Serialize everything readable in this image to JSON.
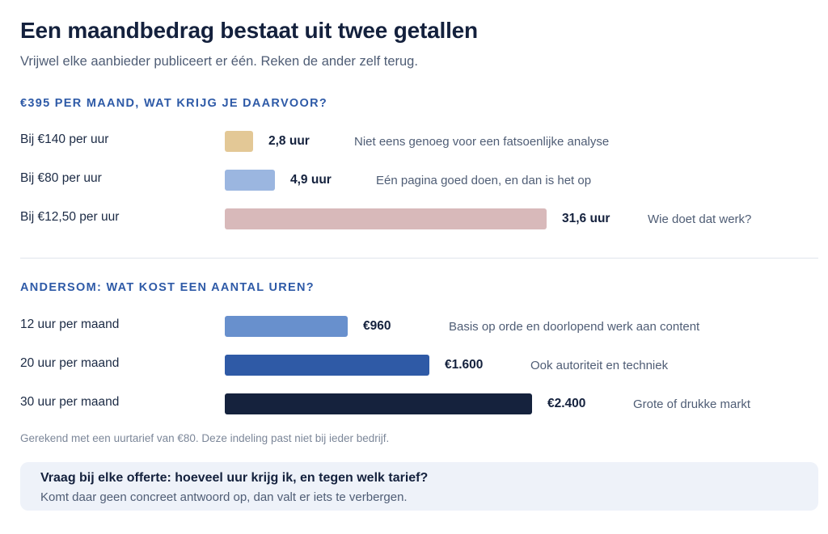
{
  "header": {
    "title": "Een maandbedrag bestaat uit twee getallen",
    "subtitle": "Vrijwel elke aanbieder publiceert er één. Reken de ander zelf terug."
  },
  "chart_data": [
    {
      "type": "bar",
      "orientation": "horizontal",
      "title": "€395 PER MAAND, WAT KRIJG JE DAARVOOR?",
      "unit": "uur",
      "categories": [
        "Bij €140 per uur",
        "Bij €80 per uur",
        "Bij €12,50 per uur"
      ],
      "values": [
        2.8,
        4.9,
        31.6
      ],
      "value_labels": [
        "2,8 uur",
        "4,9 uur",
        "31,6 uur"
      ],
      "notes": [
        "Niet eens genoeg voor een fatsoenlijke analyse",
        "Eén pagina goed doen, en dan is het op",
        "Wie doet dat werk?"
      ],
      "colors": [
        "#e3c896",
        "#9bb6e0",
        "#d8b9ba"
      ]
    },
    {
      "type": "bar",
      "orientation": "horizontal",
      "title": "ANDERSOM: WAT KOST EEN AANTAL UREN?",
      "unit": "€",
      "categories": [
        "12 uur per maand",
        "20 uur per maand",
        "30 uur per maand"
      ],
      "values": [
        960,
        1600,
        2400
      ],
      "value_labels": [
        "€960",
        "€1.600",
        "€2.400"
      ],
      "notes": [
        "Basis op orde en doorlopend werk aan content",
        "Ook autoriteit en techniek",
        "Grote of drukke markt"
      ],
      "colors": [
        "#6890cd",
        "#2f5aa6",
        "#15223d"
      ]
    }
  ],
  "footnote": "Gerekend met een uurtarief van €80. Deze indeling past niet bij ieder bedrijf.",
  "callout": {
    "title": "Vraag bij elke offerte: hoeveel uur krijg ik, en tegen welk tarief?",
    "text": "Komt daar geen concreet antwoord op, dan valt er iets te verbergen."
  }
}
